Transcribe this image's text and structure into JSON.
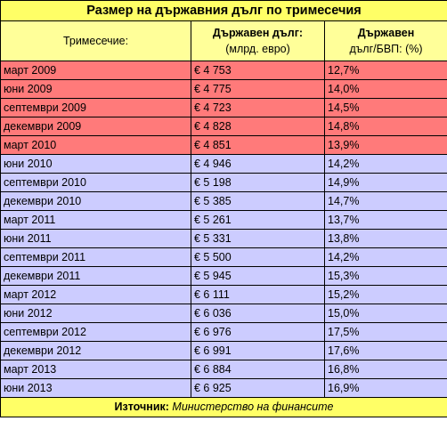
{
  "title": "Размер на държавния дълг по тримесечия",
  "headers": {
    "quarter": "Тримесечие:",
    "debt_line1": "Държавен дълг:",
    "debt_line2": "(млрд. евро)",
    "ratio_line1": "Държавен",
    "ratio_line2": "дълг/БВП: (%)"
  },
  "colors": {
    "title_bg": "#ffff66",
    "header_bg": "#ffff99",
    "highlight_row_bg": "#ff7a7a",
    "normal_row_bg": "#ccccff"
  },
  "rows": [
    {
      "quarter": "март 2009",
      "debt": "€ 4 753",
      "ratio": "12,7%",
      "highlight": true
    },
    {
      "quarter": "юни 2009",
      "debt": "€ 4 775",
      "ratio": "14,0%",
      "highlight": true
    },
    {
      "quarter": "септември 2009",
      "debt": "€ 4 723",
      "ratio": "14,5%",
      "highlight": true
    },
    {
      "quarter": "декември 2009",
      "debt": "€ 4 828",
      "ratio": "14,8%",
      "highlight": true
    },
    {
      "quarter": "март 2010",
      "debt": "€ 4 851",
      "ratio": "13,9%",
      "highlight": true
    },
    {
      "quarter": "юни 2010",
      "debt": "€ 4 946",
      "ratio": "14,2%",
      "highlight": false
    },
    {
      "quarter": "септември 2010",
      "debt": "€ 5 198",
      "ratio": "14,9%",
      "highlight": false
    },
    {
      "quarter": "декември 2010",
      "debt": "€ 5 385",
      "ratio": "14,7%",
      "highlight": false
    },
    {
      "quarter": "март 2011",
      "debt": "€ 5 261",
      "ratio": "13,7%",
      "highlight": false
    },
    {
      "quarter": "юни 2011",
      "debt": "€ 5 331",
      "ratio": "13,8%",
      "highlight": false
    },
    {
      "quarter": "септември 2011",
      "debt": "€ 5 500",
      "ratio": "14,2%",
      "highlight": false
    },
    {
      "quarter": "декември 2011",
      "debt": "€ 5 945",
      "ratio": "15,3%",
      "highlight": false
    },
    {
      "quarter": "март 2012",
      "debt": "€ 6 111",
      "ratio": "15,2%",
      "highlight": false
    },
    {
      "quarter": "юни  2012",
      "debt": "€ 6 036",
      "ratio": "15,0%",
      "highlight": false
    },
    {
      "quarter": "септември 2012",
      "debt": "€ 6 976",
      "ratio": "17,5%",
      "highlight": false
    },
    {
      "quarter": "декември 2012",
      "debt": "€ 6 991",
      "ratio": "17,6%",
      "highlight": false
    },
    {
      "quarter": "март 2013",
      "debt": "€ 6 884",
      "ratio": "16,8%",
      "highlight": false
    },
    {
      "quarter": "юни 2013",
      "debt": "€ 6 925",
      "ratio": "16,9%",
      "highlight": false
    }
  ],
  "footer": {
    "source_label": "Източник:",
    "source_name": "Министерство на финансите"
  }
}
